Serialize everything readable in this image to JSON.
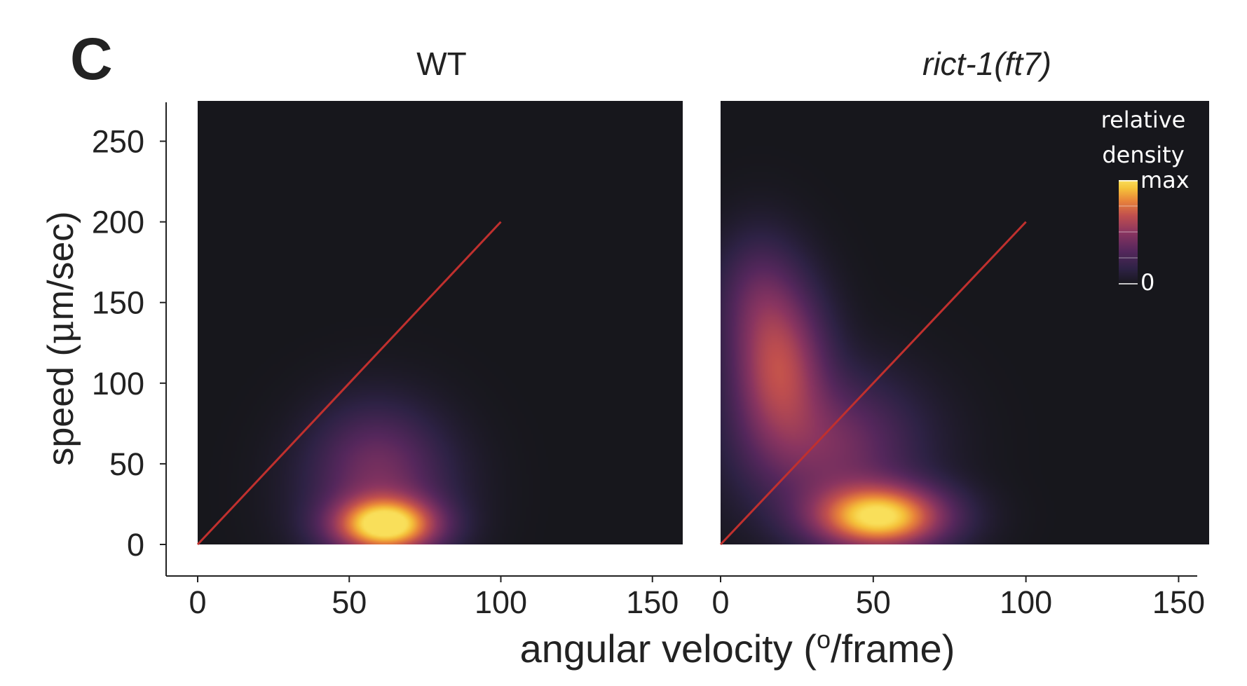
{
  "panel_label": "C",
  "colors": {
    "background": "#ffffff",
    "plot_background": "#17171c",
    "diagonal_line": "#c0302e",
    "axis": "#222222",
    "colormap": [
      "#17171c",
      "#2e2245",
      "#55275c",
      "#8a3560",
      "#c04f4e",
      "#e8833a",
      "#f5c23a",
      "#f9df5a"
    ]
  },
  "chart_data": {
    "type": "heatmap",
    "ylabel_text": "speed (",
    "ylabel_mu": "μ",
    "ylabel_rest": "m/sec)",
    "xlabel_text": "angular velocity (",
    "xlabel_sup": "o",
    "xlabel_rest": "/frame)",
    "y_ticks": [
      "0",
      "50",
      "100",
      "150",
      "200",
      "250"
    ],
    "x_ticks": [
      "0",
      "50",
      "100",
      "150"
    ],
    "xlim": [
      0,
      160
    ],
    "ylim": [
      0,
      275
    ],
    "legend": {
      "title_line1": "relative",
      "title_line2": "density",
      "max_label": "max",
      "min_label": "0"
    },
    "panels": [
      {
        "title": "WT",
        "italic": false,
        "diagonal": {
          "x": [
            0,
            100
          ],
          "y": [
            0,
            200
          ]
        },
        "density_peaks": [
          {
            "x": 62,
            "y": 12,
            "sx": 11,
            "sy": 11,
            "w": 1.0
          },
          {
            "x": 60,
            "y": 35,
            "sx": 15,
            "sy": 28,
            "w": 0.28
          },
          {
            "x": 58,
            "y": 60,
            "sx": 12,
            "sy": 20,
            "w": 0.08
          }
        ]
      },
      {
        "title": "rict-1(ft7)",
        "italic": true,
        "diagonal": {
          "x": [
            0,
            100
          ],
          "y": [
            0,
            200
          ]
        },
        "density_peaks": [
          {
            "x": 52,
            "y": 17,
            "sx": 14,
            "sy": 13,
            "w": 1.0
          },
          {
            "x": 19,
            "y": 110,
            "sx": 10,
            "sy": 32,
            "w": 0.52
          },
          {
            "x": 36,
            "y": 60,
            "sx": 18,
            "sy": 28,
            "w": 0.32
          },
          {
            "x": 12,
            "y": 155,
            "sx": 9,
            "sy": 25,
            "w": 0.18
          }
        ]
      }
    ]
  }
}
